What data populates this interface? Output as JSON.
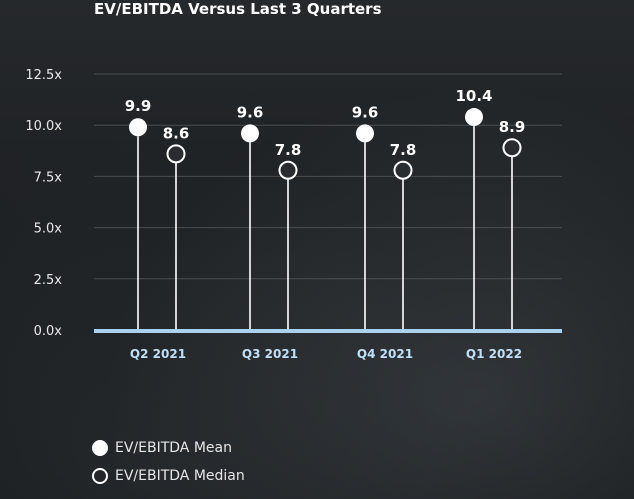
{
  "chart_data": {
    "type": "scatter",
    "title": "EV/EBITDA Versus Last 3 Quarters",
    "categories": [
      "Q2 2021",
      "Q3 2021",
      "Q4 2021",
      "Q1 2022"
    ],
    "series": [
      {
        "name": "EV/EBITDA Mean",
        "values": [
          9.9,
          9.6,
          9.6,
          10.4
        ],
        "labels": [
          "9.9",
          "9.6",
          "9.6",
          "10.4"
        ],
        "marker": "filled-circle"
      },
      {
        "name": "EV/EBITDA Median",
        "values": [
          8.6,
          7.8,
          7.8,
          8.9
        ],
        "labels": [
          "8.6",
          "7.8",
          "7.8",
          "8.9"
        ],
        "marker": "hollow-circle"
      }
    ],
    "y_ticks": [
      "0.0x",
      "2.5x",
      "5.0x",
      "7.5x",
      "10.0x",
      "12.5x"
    ],
    "ylim": [
      0,
      12.5
    ],
    "grid": true,
    "legend_position": "bottom-left",
    "colors": {
      "background": "#1f2224",
      "baseline": "#a9d2f0",
      "category_label": "#bfe0f7",
      "marker": "#ffffff",
      "grid": "#5a5e62"
    }
  }
}
